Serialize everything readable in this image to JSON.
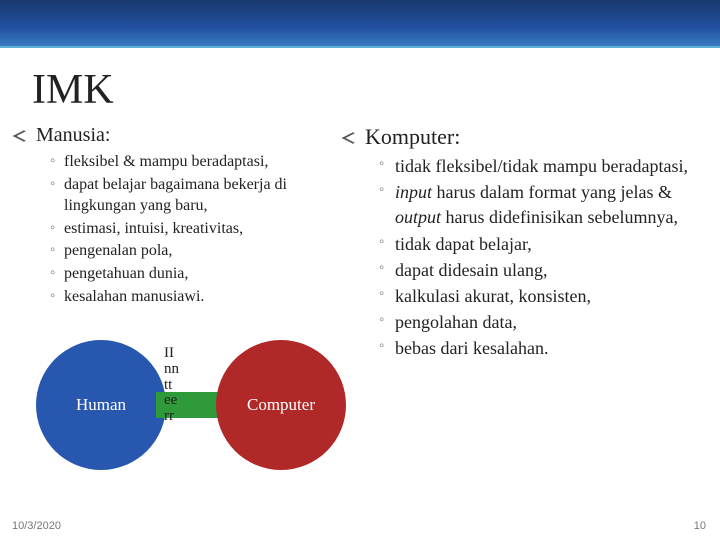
{
  "slide": {
    "title": "IMK",
    "left": {
      "heading": "Manusia:",
      "items": [
        "fleksibel & mampu beradaptasi,",
        "dapat belajar bagaimana bekerja di lingkungan yang baru,",
        "estimasi, intuisi, kreativitas,",
        "pengenalan pola,",
        "pengetahuan dunia,",
        "kesalahan manusiawi."
      ]
    },
    "right": {
      "heading": "Komputer:",
      "items_html": [
        "tidak fleksibel/tidak mampu beradaptasi,",
        "<span class=\"italic\">input</span> harus dalam format yang jelas & <span class=\"italic\">output</span> harus didefinisikan sebelumnya,",
        "tidak dapat belajar,",
        "dapat didesain ulang,",
        "kalkulasi akurat, konsisten,",
        "pengolahan data,",
        "bebas dari kesalahan."
      ]
    },
    "diagram": {
      "human_label": "Human",
      "computer_label": "Computer",
      "inter_label": "II\nnn\ntt\nee\nrr",
      "colors": {
        "human": "#2857b0",
        "computer": "#b02828",
        "arrow": "#2f9a3a"
      }
    },
    "footer": {
      "date": "10/3/2020",
      "page": "10"
    },
    "topbar_gradient": [
      "#1a3a6e",
      "#2050a0",
      "#3a7ac0"
    ],
    "background": "#ffffff"
  }
}
